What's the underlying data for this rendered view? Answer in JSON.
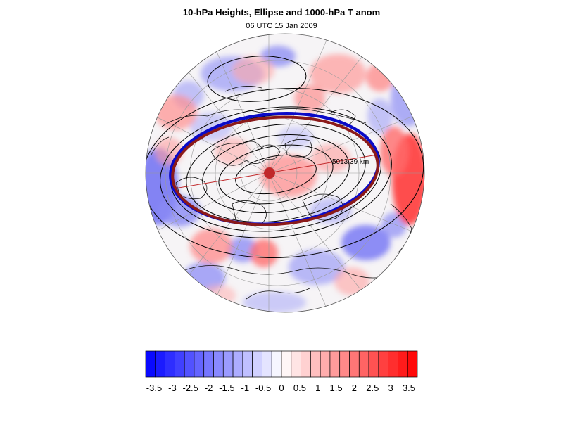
{
  "figure": {
    "title": "10-hPa Heights, Ellipse and 1000-hPa T anom",
    "subtitle": "06 UTC 15 Jan 2009"
  },
  "map": {
    "projection": "polar stereographic (north pole)",
    "ellipse_length_label": "5013.39 km",
    "colors": {
      "ellipse_fitted": "#8b1a1a",
      "ellipse_contour": "#0a0ac8",
      "center_marker": "#c0282a",
      "contours": "#000000",
      "grid": "#999999"
    }
  },
  "colorbar": {
    "levels": [
      -3.5,
      -3.25,
      -3,
      -2.75,
      -2.5,
      -2.25,
      -2,
      -1.75,
      -1.5,
      -1.25,
      -1,
      -0.75,
      -0.5,
      -0.25,
      0,
      0.25,
      0.5,
      0.75,
      1,
      1.25,
      1.5,
      1.75,
      2,
      2.25,
      2.5,
      2.75,
      3,
      3.25,
      3.5
    ],
    "tick_labels": [
      "-3.5",
      "-3",
      "-2.5",
      "-2",
      "-1.5",
      "-1",
      "-0.5",
      "0",
      "0.5",
      "1",
      "1.5",
      "2",
      "2.5",
      "3",
      "3.5"
    ],
    "color_min": "#0000ff",
    "color_mid": "#ffffff",
    "color_max": "#ff0000"
  }
}
